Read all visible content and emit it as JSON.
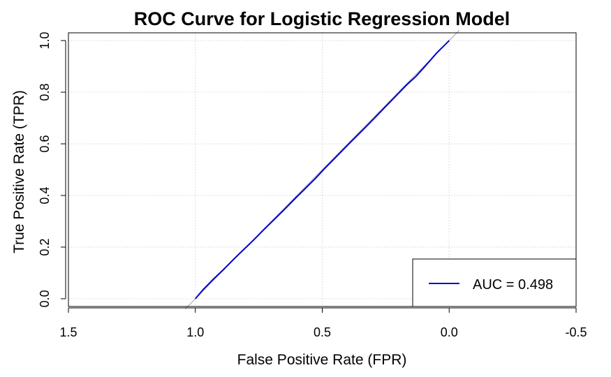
{
  "chart_data": {
    "type": "line",
    "title": "ROC Curve for Logistic Regression Model",
    "xlabel": "False Positive Rate (FPR)",
    "ylabel": "True Positive Rate (TPR)",
    "x_reversed": true,
    "xlim": [
      1.5,
      -0.5
    ],
    "ylim": [
      -0.03,
      1.03
    ],
    "x_ticks": [
      1.5,
      1.0,
      0.5,
      0.0,
      -0.5
    ],
    "x_tick_labels": [
      "1.5",
      "1.0",
      "0.5",
      "0.0",
      "-0.5"
    ],
    "y_ticks": [
      0.0,
      0.2,
      0.4,
      0.6,
      0.8,
      1.0
    ],
    "y_tick_labels": [
      "0.0",
      "0.2",
      "0.4",
      "0.6",
      "0.8",
      "1.0"
    ],
    "grid": true,
    "diagonal_reference": {
      "x": [
        1.04,
        -0.04
      ],
      "y": [
        -0.04,
        1.04
      ],
      "color": "#a0a0a0"
    },
    "series": [
      {
        "color": "#0000cc",
        "x": [
          1.0,
          0.97,
          0.93,
          0.89,
          0.85,
          0.81,
          0.77,
          0.73,
          0.69,
          0.65,
          0.61,
          0.57,
          0.53,
          0.49,
          0.45,
          0.41,
          0.37,
          0.33,
          0.29,
          0.25,
          0.21,
          0.17,
          0.13,
          0.09,
          0.05,
          0.0
        ],
        "y": [
          0.0,
          0.035,
          0.075,
          0.112,
          0.152,
          0.19,
          0.228,
          0.268,
          0.306,
          0.345,
          0.385,
          0.424,
          0.463,
          0.505,
          0.545,
          0.585,
          0.625,
          0.664,
          0.704,
          0.745,
          0.785,
          0.826,
          0.862,
          0.906,
          0.951,
          1.0
        ]
      }
    ],
    "legend": {
      "position": "bottom-right",
      "entries": [
        {
          "label": "AUC = 0.498",
          "color": "#0000cc"
        }
      ]
    }
  }
}
